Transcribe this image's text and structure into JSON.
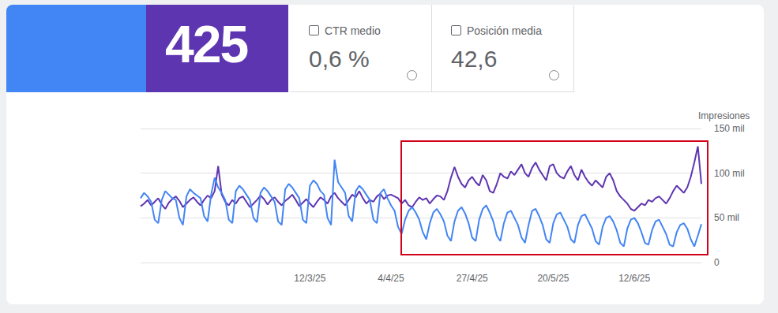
{
  "cards": [
    {
      "value": "425"
    },
    {
      "label": "CTR medio",
      "value": "0,6 %"
    },
    {
      "label": "Posición media",
      "value": "42,6"
    }
  ],
  "chart_data": {
    "type": "line",
    "ylabel": "Impresiones",
    "categories": [
      null,
      null,
      null,
      null,
      null,
      null,
      null,
      null,
      null,
      null,
      null,
      null,
      null,
      null,
      null,
      null,
      null,
      null,
      null,
      null,
      null,
      null,
      null,
      null,
      null,
      null,
      null,
      null,
      null,
      null,
      null,
      null,
      null,
      null,
      null,
      null,
      null,
      null,
      null,
      null,
      null,
      null,
      null,
      null,
      null,
      null,
      null,
      null,
      "12/3/25",
      null,
      null,
      null,
      null,
      null,
      null,
      null,
      null,
      null,
      null,
      null,
      null,
      null,
      null,
      null,
      null,
      null,
      null,
      null,
      null,
      null,
      null,
      "4/4/25",
      null,
      null,
      null,
      null,
      null,
      null,
      null,
      null,
      null,
      null,
      null,
      null,
      null,
      null,
      null,
      null,
      null,
      null,
      null,
      null,
      null,
      null,
      "27/4/25",
      null,
      null,
      null,
      null,
      null,
      null,
      null,
      null,
      null,
      null,
      null,
      null,
      null,
      null,
      null,
      null,
      null,
      null,
      null,
      null,
      null,
      null,
      "20/5/25",
      null,
      null,
      null,
      null,
      null,
      null,
      null,
      null,
      null,
      null,
      null,
      null,
      null,
      null,
      null,
      null,
      null,
      null,
      null,
      null,
      null,
      null,
      "12/6/25",
      null,
      null,
      null,
      null,
      null,
      null,
      null,
      null,
      null,
      null,
      null,
      null,
      null,
      null,
      null,
      null,
      null,
      null,
      null
    ],
    "series": [
      {
        "color": "#5e35b1",
        "values": [
          63000,
          66000,
          70000,
          64000,
          68000,
          72000,
          65000,
          60000,
          67000,
          71000,
          74000,
          69000,
          62000,
          66000,
          70000,
          73000,
          68000,
          64000,
          70000,
          75000,
          72000,
          80000,
          108000,
          76000,
          68000,
          64000,
          70000,
          66000,
          72000,
          74000,
          68000,
          62000,
          66000,
          70000,
          75000,
          71000,
          65000,
          70000,
          73000,
          68000,
          64000,
          69000,
          72000,
          76000,
          70000,
          63000,
          67000,
          71000,
          66000,
          62000,
          68000,
          73000,
          70000,
          66000,
          74000,
          78000,
          72000,
          68000,
          64000,
          70000,
          76000,
          73000,
          80000,
          72000,
          66000,
          70000,
          68000,
          74000,
          77000,
          71000,
          75000,
          76000,
          74000,
          72000,
          66000,
          70000,
          64000,
          62000,
          68000,
          73000,
          70000,
          72000,
          66000,
          71000,
          75000,
          74000,
          70000,
          80000,
          95000,
          107000,
          96000,
          88000,
          84000,
          92000,
          96000,
          90000,
          86000,
          98000,
          92000,
          80000,
          78000,
          88000,
          100000,
          96000,
          94000,
          102000,
          98000,
          104000,
          110000,
          100000,
          96000,
          106000,
          112000,
          104000,
          98000,
          92000,
          108000,
          110000,
          100000,
          96000,
          94000,
          102000,
          108000,
          98000,
          92000,
          104000,
          96000,
          90000,
          86000,
          92000,
          88000,
          84000,
          96000,
          100000,
          92000,
          80000,
          74000,
          70000,
          66000,
          60000,
          58000,
          62000,
          66000,
          64000,
          70000,
          68000,
          72000,
          74000,
          70000,
          66000,
          72000,
          80000,
          86000,
          82000,
          78000,
          84000,
          96000,
          112000,
          130000,
          88000
        ]
      },
      {
        "color": "#4285f4",
        "values": [
          72000,
          78000,
          74000,
          68000,
          48000,
          44000,
          70000,
          80000,
          76000,
          72000,
          70000,
          50000,
          42000,
          74000,
          82000,
          78000,
          75000,
          72000,
          52000,
          46000,
          76000,
          95000,
          84000,
          78000,
          70000,
          48000,
          44000,
          80000,
          86000,
          82000,
          76000,
          70000,
          50000,
          45000,
          78000,
          84000,
          80000,
          74000,
          68000,
          46000,
          42000,
          82000,
          88000,
          84000,
          78000,
          72000,
          48000,
          44000,
          86000,
          92000,
          88000,
          80000,
          76000,
          50000,
          42000,
          115000,
          90000,
          84000,
          78000,
          52000,
          46000,
          80000,
          86000,
          82000,
          76000,
          70000,
          48000,
          44000,
          78000,
          82000,
          72000,
          64000,
          58000,
          40000,
          32000,
          48000,
          58000,
          62000,
          56000,
          48000,
          34000,
          26000,
          44000,
          56000,
          60000,
          54000,
          46000,
          30000,
          24000,
          46000,
          58000,
          62000,
          55000,
          44000,
          28000,
          24000,
          48000,
          60000,
          64000,
          56000,
          46000,
          30000,
          24000,
          44000,
          56000,
          58000,
          50000,
          42000,
          28000,
          22000,
          42000,
          58000,
          60000,
          52000,
          42000,
          26000,
          22000,
          44000,
          54000,
          56000,
          48000,
          40000,
          26000,
          22000,
          42000,
          52000,
          54000,
          46000,
          38000,
          24000,
          20000,
          40000,
          50000,
          52000,
          46000,
          36000,
          22000,
          18000,
          38000,
          48000,
          50000,
          44000,
          34000,
          22000,
          20000,
          36000,
          46000,
          48000,
          40000,
          32000,
          20000,
          18000,
          34000,
          42000,
          44000,
          38000,
          26000,
          18000,
          30000,
          43000
        ]
      }
    ],
    "ylim": [
      0,
      150000
    ],
    "yticks": [
      0,
      {
        "value": 50000,
        "label": "50 mil"
      },
      {
        "value": 100000,
        "label": "100 mil"
      },
      {
        "value": 150000,
        "label": "150 mil"
      }
    ],
    "grid": true
  }
}
